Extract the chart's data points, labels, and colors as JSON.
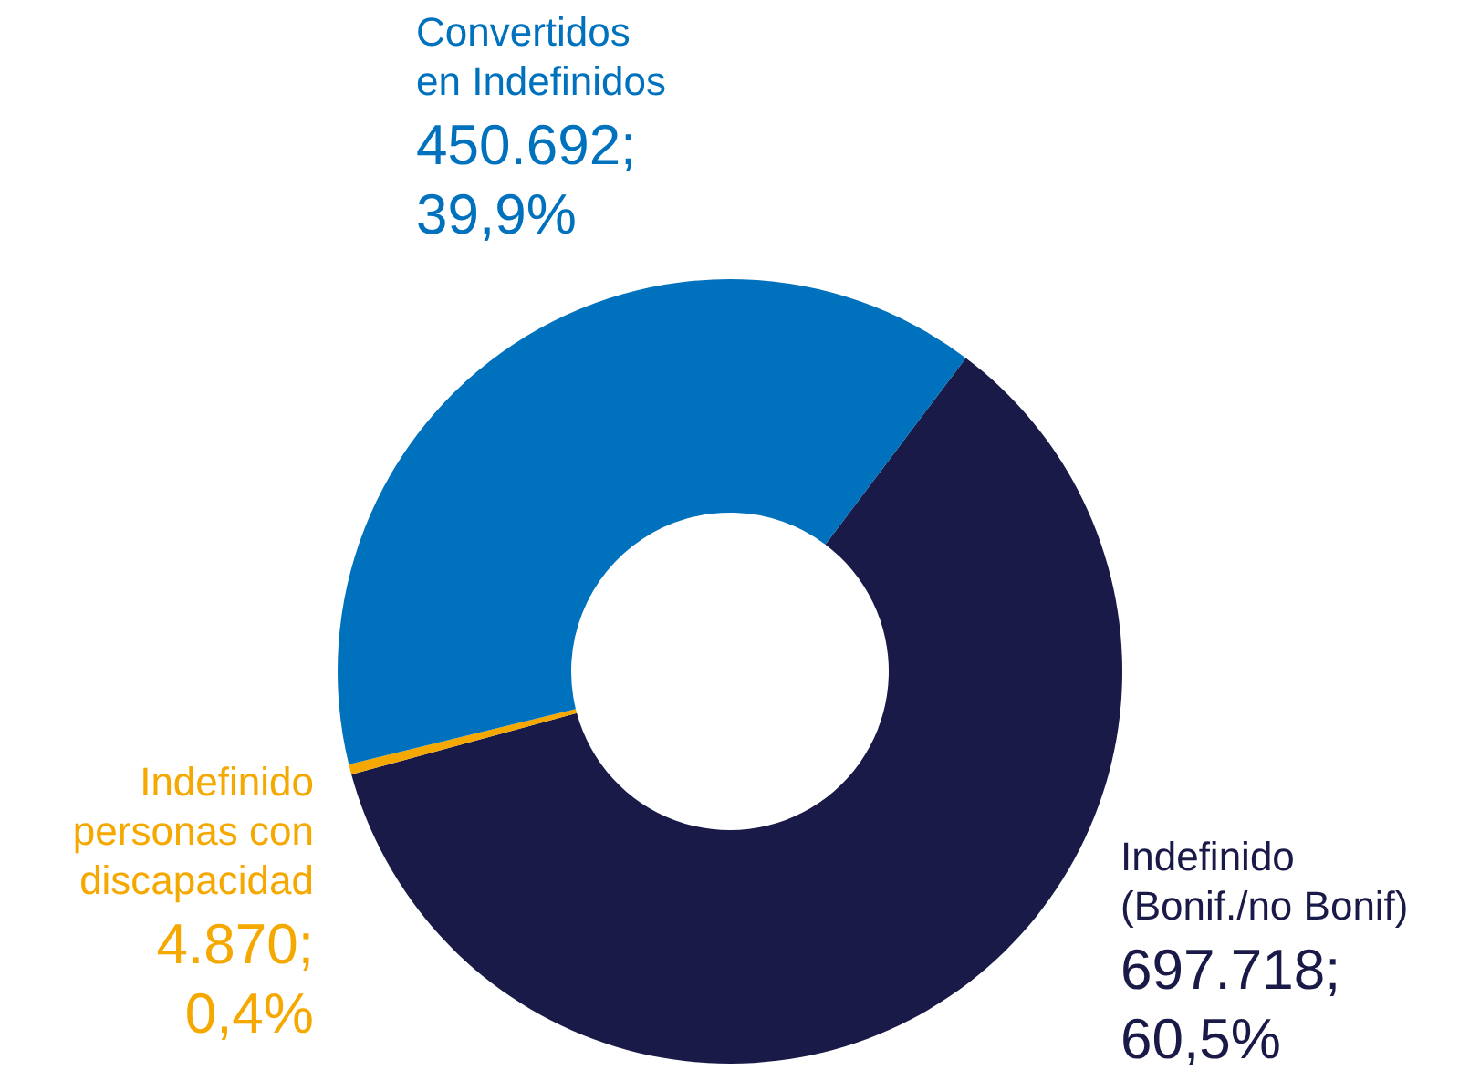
{
  "chart_data": {
    "type": "donut",
    "categories": [
      "Indefinido (Bonif./no Bonif)",
      "Indefinido personas con discapacidad",
      "Convertidos en Indefinidos"
    ],
    "values": [
      697718,
      4870,
      450692
    ],
    "colors": [
      "#1a1a48",
      "#f5a800",
      "#0071bc"
    ],
    "value_labels": [
      "697.718; 60,5%",
      "4.870; 0,4%",
      "450.692; 39,9%"
    ]
  }
}
